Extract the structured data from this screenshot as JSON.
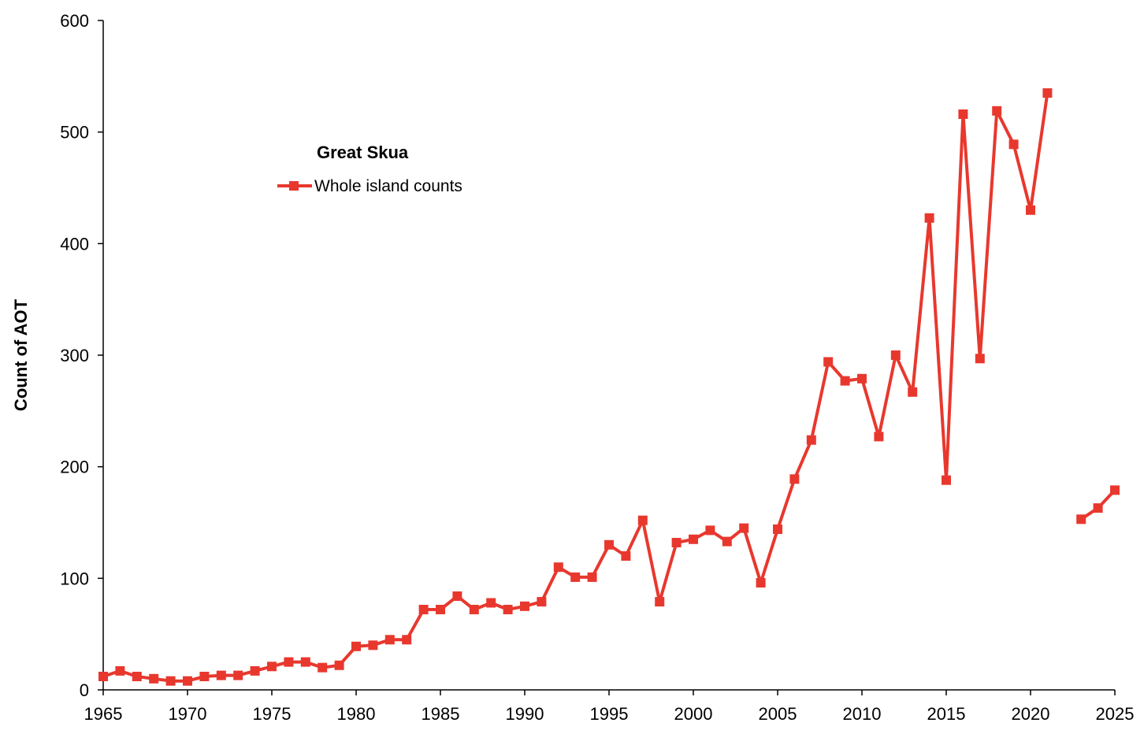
{
  "chart_data": {
    "type": "line",
    "title": "",
    "legend_title": "Great Skua",
    "legend_placement": "upper-left-center",
    "xlabel": "",
    "ylabel": "Count of AOT",
    "xlim": [
      1965,
      2025
    ],
    "ylim": [
      0,
      600
    ],
    "x_ticks": [
      "1965",
      "1970",
      "1975",
      "1980",
      "1985",
      "1990",
      "1995",
      "2000",
      "2005",
      "2010",
      "2015",
      "2020",
      "2025"
    ],
    "y_ticks": [
      "0",
      "100",
      "200",
      "300",
      "400",
      "500",
      "600"
    ],
    "grid": false,
    "series": [
      {
        "name": "Whole island counts",
        "color": "#e8382e",
        "marker": "square",
        "x": [
          1965,
          1966,
          1967,
          1968,
          1969,
          1970,
          1971,
          1972,
          1973,
          1974,
          1975,
          1976,
          1977,
          1978,
          1979,
          1980,
          1981,
          1982,
          1983,
          1984,
          1985,
          1986,
          1987,
          1988,
          1989,
          1990,
          1991,
          1992,
          1993,
          1994,
          1995,
          1996,
          1997,
          1998,
          1999,
          2000,
          2001,
          2002,
          2003,
          2004,
          2005,
          2006,
          2007,
          2008,
          2009,
          2010,
          2011,
          2012,
          2013,
          2014,
          2015,
          2016,
          2017,
          2018,
          2019,
          2020,
          2021,
          2022,
          2023,
          2024,
          2025
        ],
        "y": [
          12,
          17,
          12,
          10,
          8,
          8,
          12,
          13,
          13,
          17,
          21,
          25,
          25,
          20,
          22,
          39,
          40,
          45,
          45,
          72,
          72,
          84,
          72,
          78,
          72,
          75,
          79,
          110,
          101,
          101,
          130,
          120,
          152,
          79,
          132,
          135,
          143,
          133,
          145,
          96,
          144,
          189,
          224,
          294,
          277,
          279,
          227,
          300,
          267,
          423,
          188,
          516,
          297,
          519,
          489,
          430,
          535,
          null,
          153,
          163,
          179
        ]
      }
    ]
  }
}
